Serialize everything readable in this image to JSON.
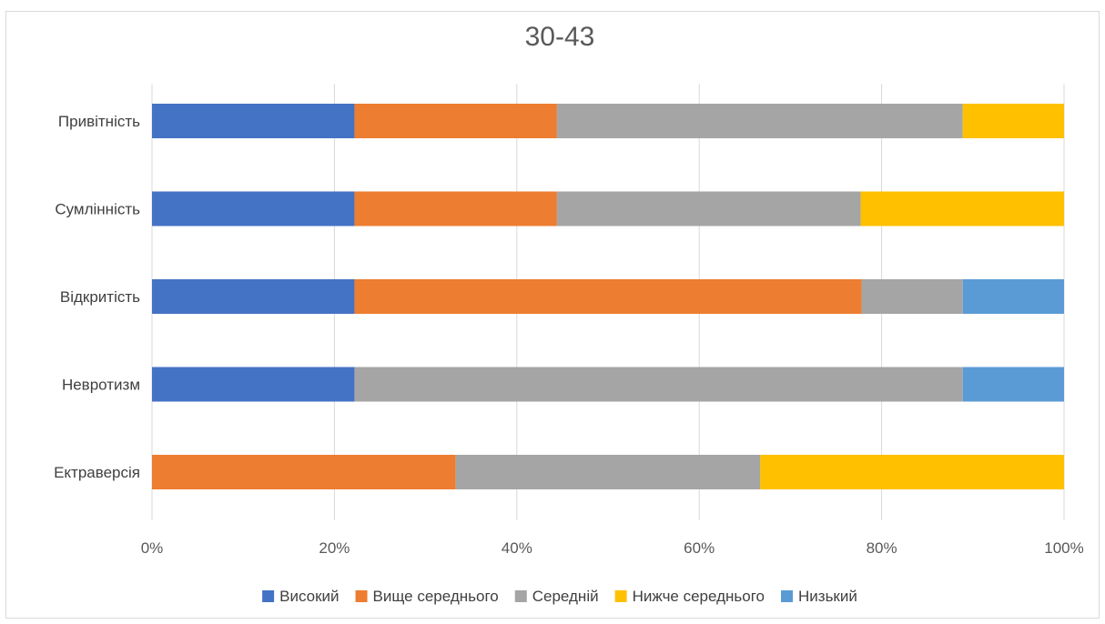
{
  "chart_data": {
    "type": "bar",
    "orientation": "horizontal",
    "stacking": "percent",
    "title": "30-43",
    "xlabel": "",
    "ylabel": "",
    "xlim": [
      0,
      100
    ],
    "x_ticks": [
      "0%",
      "20%",
      "40%",
      "60%",
      "80%",
      "100%"
    ],
    "grid": true,
    "legend_position": "bottom",
    "categories": [
      "Привітність",
      "Сумлінність",
      "Відкритість",
      "Невротизм",
      "Ектраверсія"
    ],
    "series": [
      {
        "name": "Високий",
        "color": "#4472C4",
        "values": [
          22.2,
          22.2,
          22.2,
          22.2,
          0
        ]
      },
      {
        "name": "Вище середнього",
        "color": "#ED7D31",
        "values": [
          22.2,
          22.2,
          55.6,
          0,
          33.3
        ]
      },
      {
        "name": "Середній",
        "color": "#A5A5A5",
        "values": [
          44.5,
          33.3,
          11.1,
          66.7,
          33.4
        ]
      },
      {
        "name": "Нижче середнього",
        "color": "#FFC000",
        "values": [
          11.1,
          22.3,
          0,
          0,
          33.3
        ]
      },
      {
        "name": "Низький",
        "color": "#5B9BD5",
        "values": [
          0,
          0,
          11.1,
          11.1,
          0
        ]
      }
    ]
  }
}
